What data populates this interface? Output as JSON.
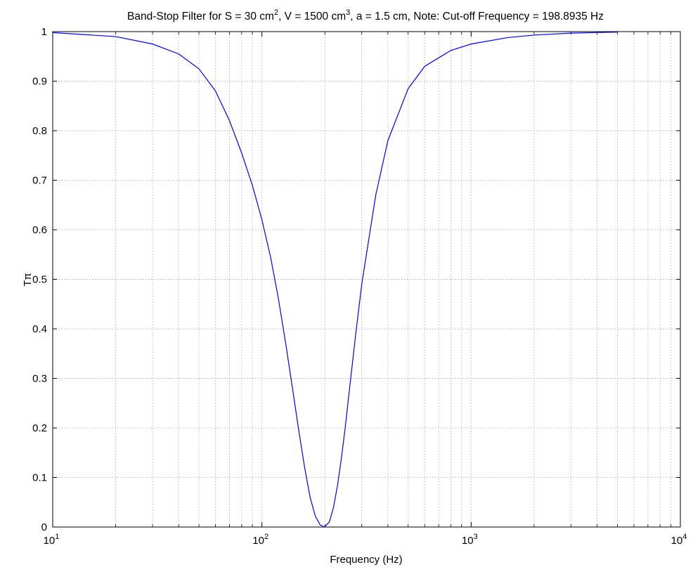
{
  "chart_data": {
    "type": "line",
    "title_parts": {
      "prefix": "Band-Stop Filter for S = 30 cm",
      "sup1": "2",
      "middle": ", V = 1500 cm",
      "sup2": "3",
      "suffix": ", a = 1.5 cm, Note: Cut-off Frequency = 198.8935 Hz"
    },
    "xlabel": "Frequency (Hz)",
    "ylabel": "Tπ",
    "xscale": "log",
    "xlim": [
      10,
      10000
    ],
    "ylim": [
      0,
      1
    ],
    "grid": true,
    "x_ticks": [
      {
        "base": "10",
        "exp": "1"
      },
      {
        "base": "10",
        "exp": "2"
      },
      {
        "base": "10",
        "exp": "3"
      },
      {
        "base": "10",
        "exp": "4"
      }
    ],
    "y_ticks": [
      "0",
      "0.1",
      "0.2",
      "0.3",
      "0.4",
      "0.5",
      "0.6",
      "0.7",
      "0.8",
      "0.9",
      "1"
    ],
    "series": [
      {
        "color": "#0000ff",
        "x": [
          10,
          20,
          30,
          40,
          50,
          60,
          70,
          80,
          90,
          100,
          110,
          120,
          130,
          140,
          150,
          160,
          170,
          180,
          190,
          198.8935,
          210,
          220,
          230,
          240,
          250,
          260,
          280,
          300,
          350,
          400,
          500,
          600,
          800,
          1000,
          1500,
          2000,
          3000,
          5000
        ],
        "y": [
          0.998,
          0.99,
          0.975,
          0.955,
          0.925,
          0.88,
          0.82,
          0.755,
          0.69,
          0.62,
          0.545,
          0.46,
          0.37,
          0.28,
          0.195,
          0.12,
          0.06,
          0.022,
          0.004,
          0.0,
          0.01,
          0.04,
          0.085,
          0.14,
          0.2,
          0.265,
          0.385,
          0.49,
          0.67,
          0.78,
          0.885,
          0.93,
          0.962,
          0.975,
          0.988,
          0.993,
          0.997,
          0.999
        ]
      }
    ]
  }
}
